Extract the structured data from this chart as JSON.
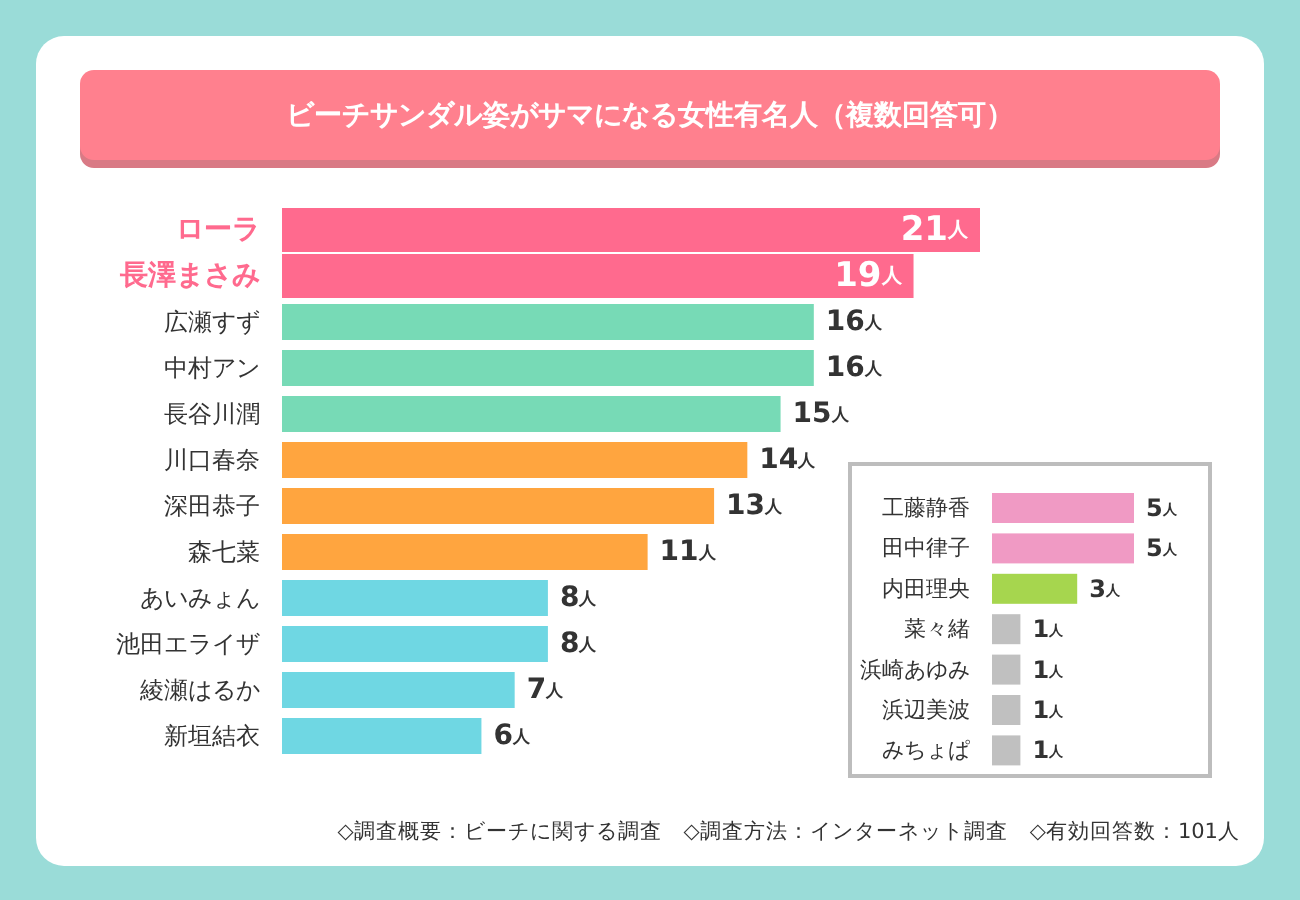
{
  "chart_data": [
    {
      "type": "bar",
      "orientation": "horizontal",
      "title": "ビーチサンダル姿がサマになる女性有名人（複数回答可）",
      "categories": [
        "ローラ",
        "長澤まさみ",
        "広瀬すず",
        "中村アン",
        "長谷川潤",
        "川口春奈",
        "深田恭子",
        "森七菜",
        "あいみょん",
        "池田エライザ",
        "綾瀬はるか",
        "新垣結衣"
      ],
      "values": [
        21,
        19,
        16,
        16,
        15,
        14,
        13,
        11,
        8,
        8,
        7,
        6
      ],
      "colors": [
        "#ff6a8e",
        "#ff6a8e",
        "#77dab6",
        "#77dab6",
        "#77dab6",
        "#ffa53f",
        "#ffa53f",
        "#ffa53f",
        "#6fd7e3",
        "#6fd7e3",
        "#6fd7e3",
        "#6fd7e3"
      ],
      "value_labels": [
        "21人",
        "19人",
        "16人",
        "16人",
        "15人",
        "14人",
        "13人",
        "11人",
        "8人",
        "8人",
        "7人",
        "6人"
      ],
      "annotations": [
        "◇調査概要：ビーチに関する調査　◇調査方法：インターネット調査　◇有効回答数：101人"
      ]
    },
    {
      "type": "bar",
      "orientation": "horizontal",
      "categories": [
        "工藤静香",
        "田中律子",
        "内田理央",
        "菜々緒",
        "浜崎あゆみ",
        "浜辺美波",
        "みちょぱ"
      ],
      "values": [
        5,
        5,
        3,
        1,
        1,
        1,
        1
      ],
      "colors": [
        "#f09ac4",
        "#f09ac4",
        "#a6d64e",
        "#c0c0c0",
        "#c0c0c0",
        "#c0c0c0",
        "#c0c0c0"
      ],
      "value_labels": [
        "5人",
        "5人",
        "3人",
        "1人",
        "1人",
        "1人",
        "1人"
      ]
    }
  ]
}
